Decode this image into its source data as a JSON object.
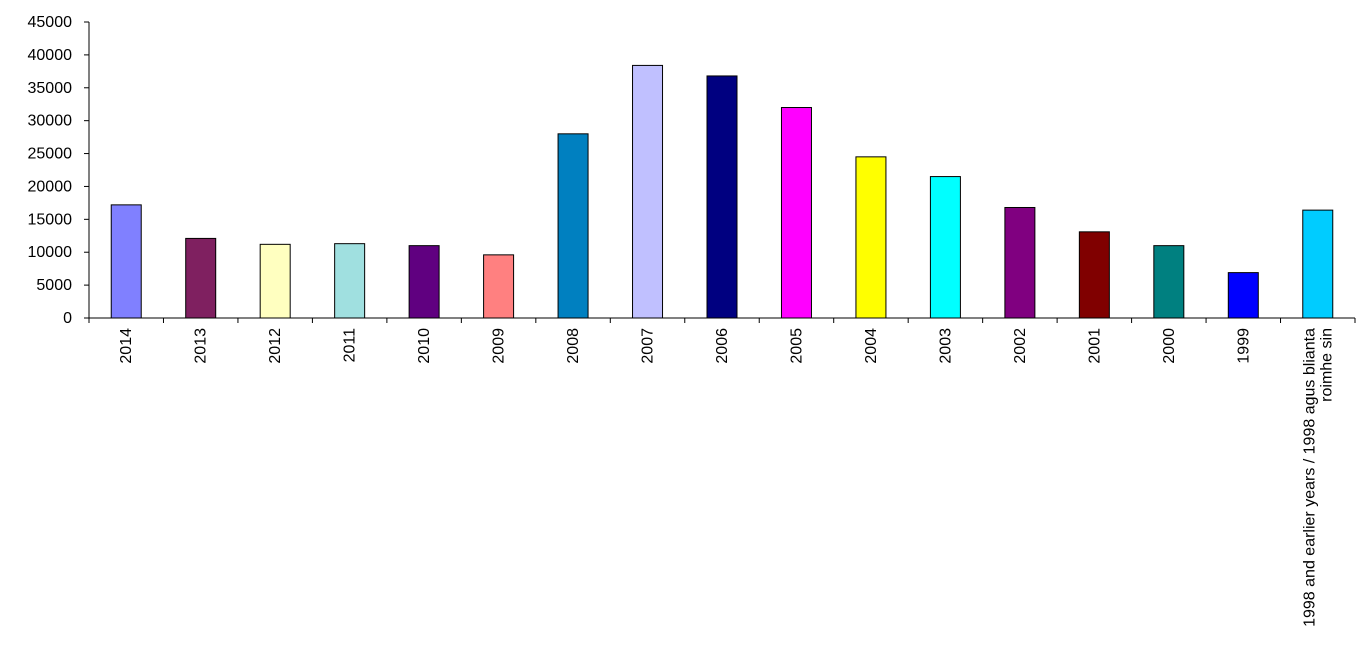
{
  "chart_data": {
    "type": "bar",
    "title": "",
    "xlabel": "",
    "ylabel": "",
    "ylim": [
      0,
      45000
    ],
    "yticks": [
      0,
      5000,
      10000,
      15000,
      20000,
      25000,
      30000,
      35000,
      40000,
      45000
    ],
    "grid": false,
    "legend": "none",
    "categories": [
      "2014",
      "2013",
      "2012",
      "2011",
      "2010",
      "2009",
      "2008",
      "2007",
      "2006",
      "2005",
      "2004",
      "2003",
      "2002",
      "2001",
      "2000",
      "1999",
      [
        "1998 and earlier years / 1998 agus blianta",
        "roimhe sin"
      ]
    ],
    "values": [
      17200,
      12100,
      11200,
      11300,
      11000,
      9600,
      28000,
      38400,
      36800,
      32000,
      24500,
      21500,
      16800,
      13100,
      11000,
      6900,
      16400
    ],
    "colors": [
      "#8080FF",
      "#7F2060",
      "#FFFFC0",
      "#A0E0E0",
      "#600080",
      "#FF8080",
      "#0080C0",
      "#C0C0FF",
      "#000080",
      "#FF00FF",
      "#FFFF00",
      "#00FFFF",
      "#800080",
      "#800000",
      "#008080",
      "#0000FF",
      "#00CCFF"
    ]
  }
}
